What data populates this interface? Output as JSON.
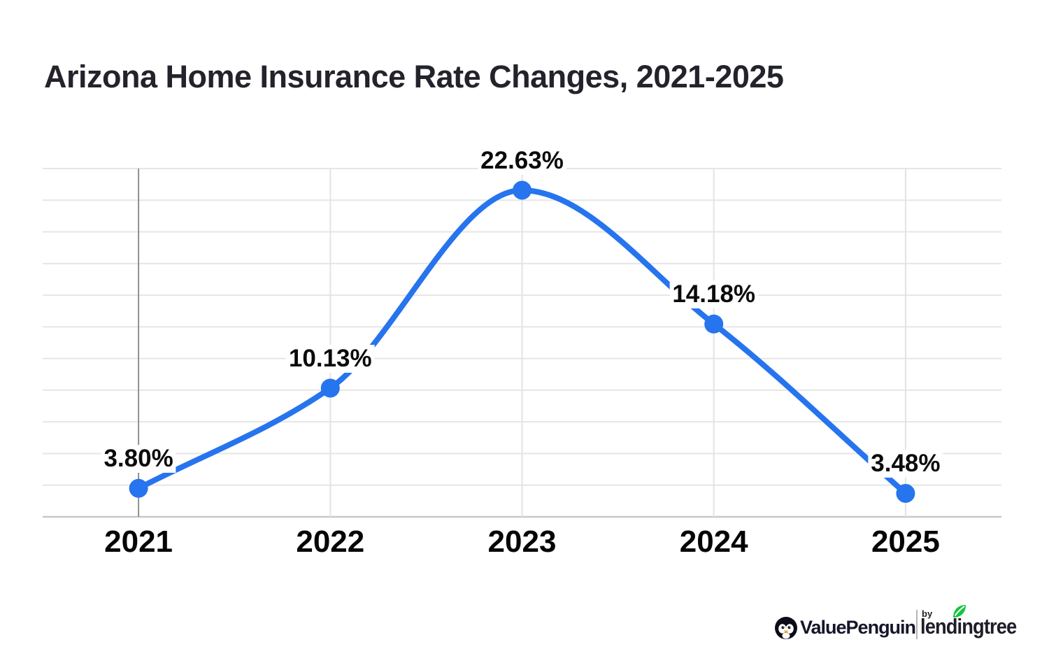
{
  "header": {
    "title": "Arizona Home Insurance Rate Changes, 2021-2025"
  },
  "chart_data": {
    "type": "line",
    "title": "Arizona Home Insurance Rate Changes, 2021-2025",
    "categories": [
      "2021",
      "2022",
      "2023",
      "2024",
      "2025"
    ],
    "values": [
      3.8,
      10.13,
      22.63,
      14.18,
      3.48
    ],
    "point_labels": [
      "3.80%",
      "10.13%",
      "22.63%",
      "14.18%",
      "3.48%"
    ],
    "xlabel": "",
    "ylabel": "",
    "ylim": [
      2,
      24
    ],
    "grid_step": 2,
    "grid": "horizontal lines every 2% (unlabeled) plus one vertical line per year; 2021 vertical line darker",
    "legend": "none",
    "smooth": true,
    "line_color": "#2674ee",
    "marker_color": "#2674ee",
    "label_color": "#0b0b0b",
    "tick_label_color": "#050505",
    "gridline_color": "#e6e6e6",
    "axis_color": "#c7c7c7",
    "highlight_line_color": "#8f8f8f"
  },
  "footer": {
    "brand": {
      "valuepenguin": "ValuePenguin",
      "by": "by",
      "lendingtree": "lendingtree",
      "leaf_color": "#14c43c",
      "beak_color": "#f2a71b"
    }
  }
}
